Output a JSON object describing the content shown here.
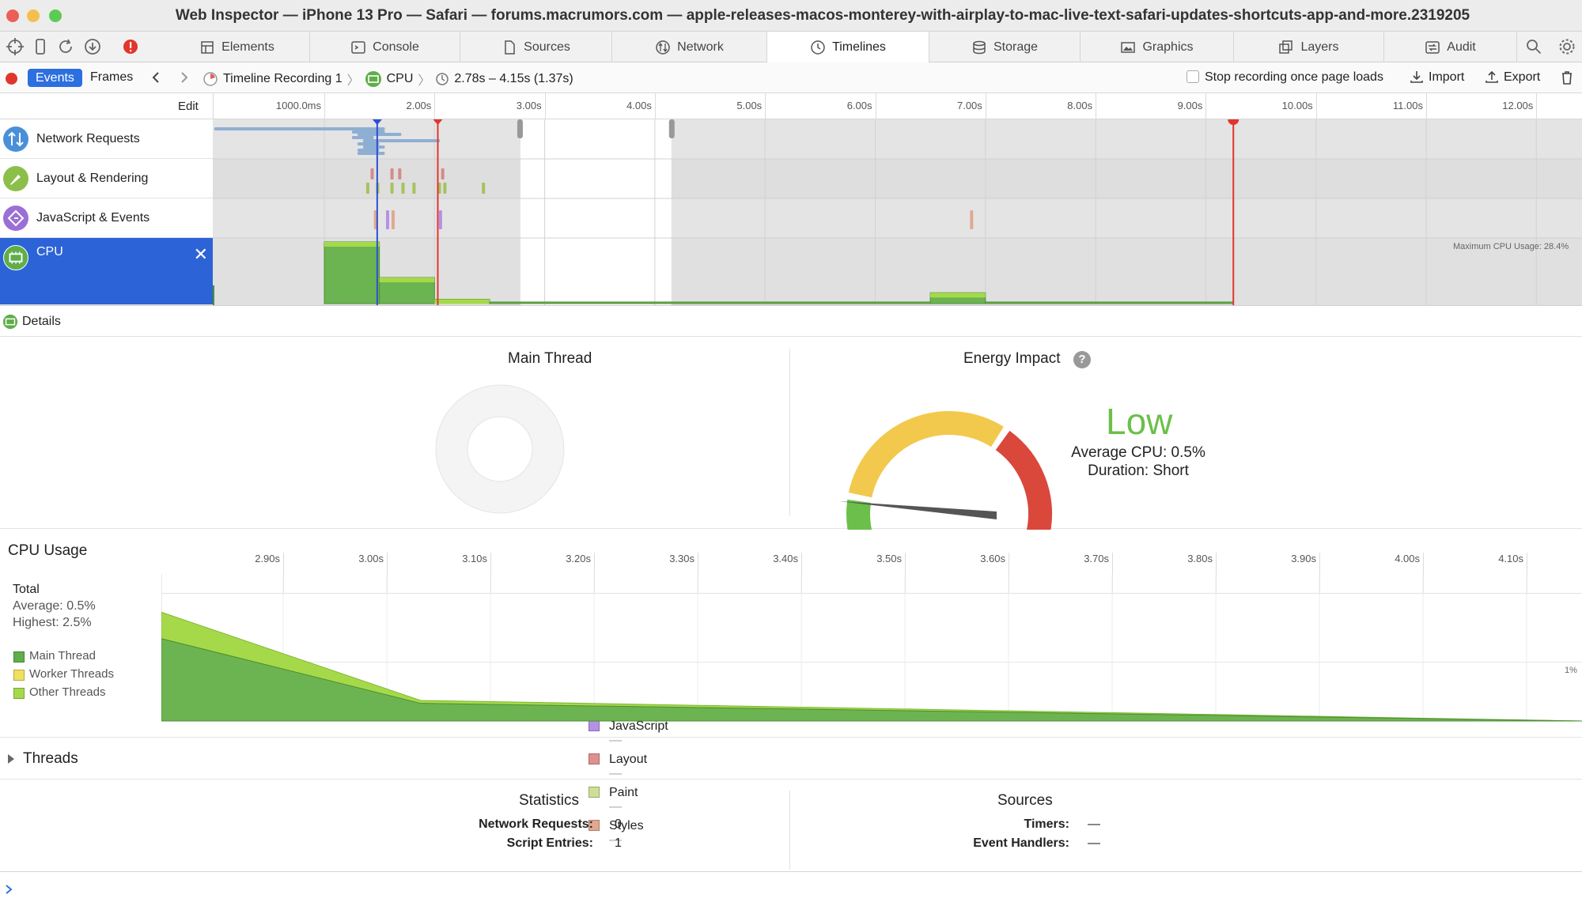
{
  "window": {
    "title": "Web Inspector — iPhone 13 Pro — Safari — forums.macrumors.com — apple-releases-macos-monterey-with-airplay-to-mac-live-text-safari-updates-shortcuts-app-and-more.2319205"
  },
  "tabs": [
    {
      "label": "Elements",
      "icon": "elements-icon"
    },
    {
      "label": "Console",
      "icon": "console-icon"
    },
    {
      "label": "Sources",
      "icon": "sources-icon"
    },
    {
      "label": "Network",
      "icon": "network-icon"
    },
    {
      "label": "Timelines",
      "icon": "timelines-icon",
      "active": true
    },
    {
      "label": "Storage",
      "icon": "storage-icon"
    },
    {
      "label": "Graphics",
      "icon": "graphics-icon"
    },
    {
      "label": "Layers",
      "icon": "layers-icon"
    },
    {
      "label": "Audit",
      "icon": "audit-icon"
    }
  ],
  "subbar": {
    "events_label": "Events",
    "frames_label": "Frames",
    "breadcrumb": {
      "recording": "Timeline Recording 1",
      "instrument": "CPU",
      "range": "2.78s – 4.15s (1.37s)"
    },
    "stop_recording_label": "Stop recording once page loads",
    "import_label": "Import",
    "export_label": "Export"
  },
  "ruler": {
    "edit_label": "Edit",
    "ticks": [
      "1000.0ms",
      "2.00s",
      "3.00s",
      "4.00s",
      "5.00s",
      "6.00s",
      "7.00s",
      "8.00s",
      "9.00s",
      "10.00s",
      "11.00s",
      "12.00s"
    ]
  },
  "timeline_rows": [
    {
      "label": "Network Requests",
      "icon": "network-requests-icon",
      "color": "#4a90d9"
    },
    {
      "label": "Layout & Rendering",
      "icon": "layout-rendering-icon",
      "color": "#8bbf4a"
    },
    {
      "label": "JavaScript & Events",
      "icon": "javascript-events-icon",
      "color": "#9b6fd6"
    },
    {
      "label": "CPU",
      "icon": "cpu-icon",
      "color": "#2c63d6",
      "selected": true
    }
  ],
  "overview": {
    "max_cpu_label": "Maximum CPU Usage: 28.4%",
    "selection_range_s": [
      2.78,
      4.15
    ],
    "blue_marker_s": 1.48,
    "red_marker_s": 2.03,
    "end_marker_s": 9.25,
    "cpu_bars": [
      {
        "start": 1.0,
        "end": 1.5,
        "value": 28.4
      },
      {
        "start": 1.5,
        "end": 2.0,
        "value": 12
      },
      {
        "start": 2.0,
        "end": 2.5,
        "value": 2
      },
      {
        "start": 2.5,
        "end": 6.5,
        "value": 0.5
      },
      {
        "start": 6.5,
        "end": 7.0,
        "value": 5
      },
      {
        "start": 7.0,
        "end": 9.25,
        "value": 0.6
      }
    ]
  },
  "details": {
    "label": "Details"
  },
  "main_thread": {
    "title": "Main Thread",
    "legend": [
      {
        "label": "JavaScript",
        "value": "—",
        "color": "#b591e6"
      },
      {
        "label": "Layout",
        "value": "—",
        "color": "#e08f8f"
      },
      {
        "label": "Paint",
        "value": "—",
        "color": "#cddf94"
      },
      {
        "label": "Styles",
        "value": "—",
        "color": "#e0a98f"
      }
    ]
  },
  "energy": {
    "title": "Energy Impact",
    "level": "Low",
    "level_color": "#6cbf4a",
    "average_cpu": "Average CPU: 0.5%",
    "duration": "Duration: Short",
    "gauge_value_fraction": 0.04
  },
  "cpu_usage": {
    "title": "CPU Usage",
    "ticks": [
      "2.90s",
      "3.00s",
      "3.10s",
      "3.20s",
      "3.30s",
      "3.40s",
      "3.50s",
      "3.60s",
      "3.70s",
      "3.80s",
      "3.90s",
      "4.00s",
      "4.10s"
    ],
    "total_label": "Total",
    "average": "Average: 0.5%",
    "highest": "Highest: 2.5%",
    "y_tick": "1%",
    "legend": [
      {
        "label": "Main Thread",
        "color": "#5fae4a"
      },
      {
        "label": "Worker Threads",
        "color": "#f0e060"
      },
      {
        "label": "Other Threads",
        "color": "#a6d94a"
      }
    ],
    "chart_data": {
      "type": "area",
      "x": [
        2.78,
        3.03,
        4.15
      ],
      "series": [
        {
          "name": "Main Thread",
          "values": [
            1.4,
            0.3,
            0.0
          ]
        },
        {
          "name": "Other Threads",
          "values": [
            0.45,
            0.05,
            0.0
          ]
        }
      ],
      "xlim": [
        2.78,
        4.15
      ],
      "ylim": [
        0,
        2.5
      ]
    }
  },
  "threads": {
    "label": "Threads"
  },
  "statistics": {
    "title": "Statistics",
    "rows": [
      {
        "k": "Network Requests:",
        "v": "0"
      },
      {
        "k": "Script Entries:",
        "v": "1"
      }
    ]
  },
  "sources": {
    "title": "Sources",
    "rows": [
      {
        "k": "Timers:",
        "v": "—"
      },
      {
        "k": "Event Handlers:",
        "v": "—"
      }
    ]
  }
}
